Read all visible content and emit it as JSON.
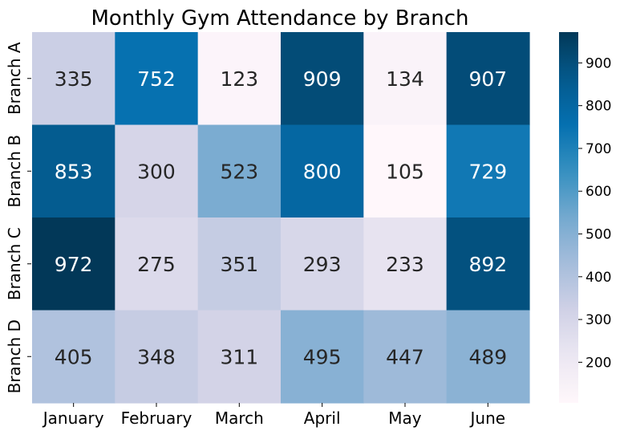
{
  "chart_data": {
    "type": "heatmap",
    "title": "Monthly Gym Attendance by Branch",
    "xlabel": "",
    "ylabel": "",
    "x_categories": [
      "January",
      "February",
      "March",
      "April",
      "May",
      "June"
    ],
    "y_categories": [
      "Branch A",
      "Branch B",
      "Branch C",
      "Branch D"
    ],
    "values": [
      [
        335,
        752,
        123,
        909,
        134,
        907
      ],
      [
        853,
        300,
        523,
        800,
        105,
        729
      ],
      [
        972,
        275,
        351,
        293,
        233,
        892
      ],
      [
        405,
        348,
        311,
        495,
        447,
        489
      ]
    ],
    "colormap": "PuBu",
    "colorbar": {
      "range": [
        105,
        972
      ],
      "ticks": [
        200,
        300,
        400,
        500,
        600,
        700,
        800,
        900
      ]
    },
    "annotations": true,
    "grid": false,
    "legend": "colorbar-right"
  }
}
